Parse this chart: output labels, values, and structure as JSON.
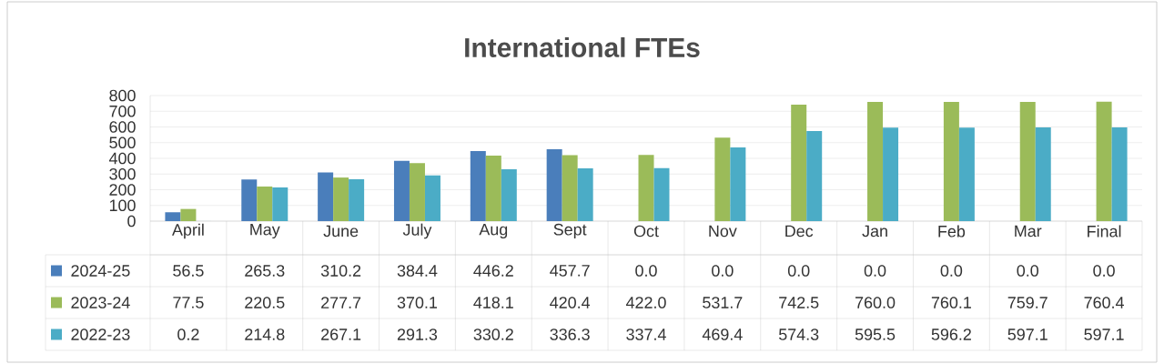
{
  "chart_data": {
    "type": "bar",
    "title": "International FTEs",
    "categories": [
      "April",
      "May",
      "June",
      "July",
      "Aug",
      "Sept",
      "Oct",
      "Nov",
      "Dec",
      "Jan",
      "Feb",
      "Mar",
      "Final"
    ],
    "series": [
      {
        "name": "2024-25",
        "color": "#4a7ebb",
        "values": [
          56.5,
          265.3,
          310.2,
          384.4,
          446.2,
          457.7,
          0,
          0,
          0,
          0,
          0,
          0,
          0
        ],
        "value_labels": [
          "56.5",
          "265.3",
          "310.2",
          "384.4",
          "446.2",
          "457.7",
          "0.0",
          "0.0",
          "0.0",
          "0.0",
          "0.0",
          "0.0",
          "0.0"
        ]
      },
      {
        "name": "2023-24",
        "color": "#9bbb59",
        "values": [
          77.5,
          220.5,
          277.7,
          370.1,
          418.1,
          420.4,
          422.0,
          531.7,
          742.5,
          760.0,
          760.1,
          759.7,
          760.4
        ],
        "value_labels": [
          "77.5",
          "220.5",
          "277.7",
          "370.1",
          "418.1",
          "420.4",
          "422.0",
          "531.7",
          "742.5",
          "760.0",
          "760.1",
          "759.7",
          "760.4"
        ]
      },
      {
        "name": "2022-23",
        "color": "#4bacc6",
        "values": [
          0.2,
          214.8,
          267.1,
          291.3,
          330.2,
          336.3,
          337.4,
          469.4,
          574.3,
          595.5,
          596.2,
          597.1,
          597.1
        ],
        "value_labels": [
          "0.2",
          "214.8",
          "267.1",
          "291.3",
          "330.2",
          "336.3",
          "337.4",
          "469.4",
          "574.3",
          "595.5",
          "596.2",
          "597.1",
          "597.1"
        ]
      }
    ],
    "ylim": [
      0,
      800
    ],
    "yticks": [
      0,
      100,
      200,
      300,
      400,
      500,
      600,
      700,
      800
    ],
    "grid": "y",
    "legend": "bottom"
  }
}
